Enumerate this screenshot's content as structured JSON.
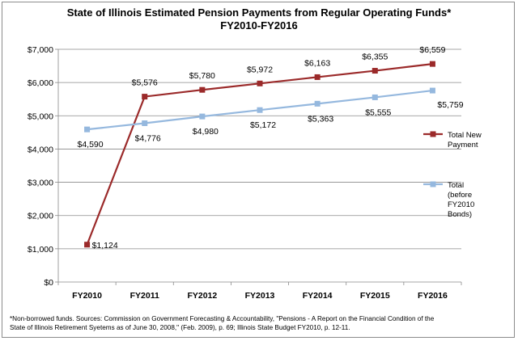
{
  "chart_data": {
    "type": "line",
    "title_line1": "State of Illinois Estimated Pension Payments from Regular Operating Funds*",
    "title_line2": "FY2010-FY2016",
    "categories": [
      "FY2010",
      "FY2011",
      "FY2012",
      "FY2013",
      "FY2014",
      "FY2015",
      "FY2016"
    ],
    "ylim": [
      0,
      7000
    ],
    "yticks": [
      0,
      1000,
      2000,
      3000,
      4000,
      5000,
      6000,
      7000
    ],
    "ytick_labels": [
      "$0",
      "$1,000",
      "$2,000",
      "$3,000",
      "$4,000",
      "$5,000",
      "$6,000",
      "$7,000"
    ],
    "grid": true,
    "legend_position": "right",
    "series": [
      {
        "name": "Total New Payment",
        "legend_lines": [
          "Total New",
          "Payment"
        ],
        "color": "#9b2a2a",
        "marker": "square",
        "values": [
          1124,
          5576,
          5780,
          5972,
          6163,
          6355,
          6559
        ],
        "labels": [
          "$1,124",
          "$5,576",
          "$5,780",
          "$5,972",
          "$6,163",
          "$6,355",
          "$6,559"
        ]
      },
      {
        "name": "Total (before FY2010 Bonds)",
        "legend_lines": [
          "Total",
          "(before",
          "FY2010",
          "Bonds)"
        ],
        "color": "#95b8de",
        "marker": "square",
        "values": [
          4590,
          4776,
          4980,
          5172,
          5363,
          5555,
          5759
        ],
        "labels": [
          "$4,590",
          "$4,776",
          "$4,980",
          "$5,172",
          "$5,363",
          "$5,555",
          "$5,759"
        ]
      }
    ],
    "footnote_line1": "*Non-borrowed funds. Sources: Commission on Government Forecasting & Accountability, \"Pensions - A Report on the Financial Condition of the",
    "footnote_line2": "State of Illinois Retirement Syetems as of June 30, 2008,\" (Feb. 2009), p. 69; Illinois State Budget FY2010, p. 12-11."
  }
}
